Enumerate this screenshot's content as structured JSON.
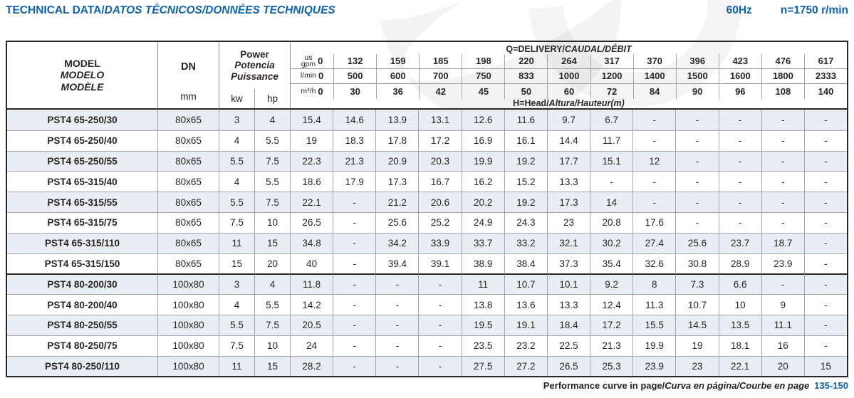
{
  "header": {
    "title": "TECHNICAL DATA/",
    "title_intl": "DATOS TÉCNICOS/DONNÉES TECHNIQUES",
    "frequency": "60Hz",
    "speed": "n=1750 r/min"
  },
  "colors": {
    "accent_blue": "#1063ae",
    "row_shade": "#e9edf4"
  },
  "table": {
    "model_header": [
      "MODEL",
      "MODELO",
      "MODÈLE"
    ],
    "dn_label": "DN",
    "dn_unit": "mm",
    "power_header": [
      "Power",
      "Potencia",
      "Puissance"
    ],
    "power_units": [
      "kw",
      "hp"
    ],
    "delivery_label": "Q=DELIVERY/",
    "delivery_label_intl": "CAUDAL/DÉBIT",
    "head_label": "H=Head/",
    "head_label_intl": "Altura/Hauteur",
    "head_label_unit": "(m)",
    "flow_units": [
      {
        "name": "us-gpm",
        "label_lines": [
          "us",
          "gpm"
        ],
        "values": [
          "0",
          "132",
          "159",
          "185",
          "198",
          "220",
          "264",
          "317",
          "370",
          "396",
          "423",
          "476",
          "617"
        ]
      },
      {
        "name": "l-min",
        "label_lines": [
          "l/min"
        ],
        "values": [
          "0",
          "500",
          "600",
          "700",
          "750",
          "833",
          "1000",
          "1200",
          "1400",
          "1500",
          "1600",
          "1800",
          "2333"
        ]
      },
      {
        "name": "m3-h",
        "label_lines": [
          "m³/h"
        ],
        "values": [
          "0",
          "30",
          "36",
          "42",
          "45",
          "50",
          "60",
          "72",
          "84",
          "90",
          "96",
          "108",
          "140"
        ]
      }
    ],
    "group_break_index": 8,
    "rows": [
      {
        "model": "PST4 65-250/30",
        "dn": "80x65",
        "kw": "3",
        "hp": "4",
        "head": [
          "15.4",
          "14.6",
          "13.9",
          "13.1",
          "12.6",
          "11.6",
          "9.7",
          "6.7",
          "-",
          "-",
          "-",
          "-",
          "-"
        ]
      },
      {
        "model": "PST4 65-250/40",
        "dn": "80x65",
        "kw": "4",
        "hp": "5.5",
        "head": [
          "19",
          "18.3",
          "17.8",
          "17.2",
          "16.9",
          "16.1",
          "14.4",
          "11.7",
          "-",
          "-",
          "-",
          "-",
          "-"
        ]
      },
      {
        "model": "PST4 65-250/55",
        "dn": "80x65",
        "kw": "5.5",
        "hp": "7.5",
        "head": [
          "22.3",
          "21.3",
          "20.9",
          "20.3",
          "19.9",
          "19.2",
          "17.7",
          "15.1",
          "12",
          "-",
          "-",
          "-",
          "-"
        ]
      },
      {
        "model": "PST4 65-315/40",
        "dn": "80x65",
        "kw": "4",
        "hp": "5.5",
        "head": [
          "18.6",
          "17.9",
          "17.3",
          "16.7",
          "16.2",
          "15.2",
          "13.3",
          "-",
          "-",
          "-",
          "-",
          "-",
          "-"
        ]
      },
      {
        "model": "PST4 65-315/55",
        "dn": "80x65",
        "kw": "5.5",
        "hp": "7.5",
        "head": [
          "22.1",
          "-",
          "21.2",
          "20.6",
          "20.2",
          "19.2",
          "17.3",
          "14",
          "-",
          "-",
          "-",
          "-",
          "-"
        ]
      },
      {
        "model": "PST4 65-315/75",
        "dn": "80x65",
        "kw": "7.5",
        "hp": "10",
        "head": [
          "26.5",
          "-",
          "25.6",
          "25.2",
          "24.9",
          "24.3",
          "23",
          "20.8",
          "17.6",
          "-",
          "-",
          "-",
          "-"
        ]
      },
      {
        "model": "PST4 65-315/110",
        "dn": "80x65",
        "kw": "11",
        "hp": "15",
        "head": [
          "34.8",
          "-",
          "34.2",
          "33.9",
          "33.7",
          "33.2",
          "32.1",
          "30.2",
          "27.4",
          "25.6",
          "23.7",
          "18.7",
          "-"
        ]
      },
      {
        "model": "PST4 65-315/150",
        "dn": "80x65",
        "kw": "15",
        "hp": "20",
        "head": [
          "40",
          "-",
          "39.4",
          "39.1",
          "38.9",
          "38.4",
          "37.3",
          "35.4",
          "32.6",
          "30.8",
          "28.9",
          "23.9",
          "-"
        ]
      },
      {
        "model": "PST4 80-200/30",
        "dn": "100x80",
        "kw": "3",
        "hp": "4",
        "head": [
          "11.8",
          "-",
          "-",
          "-",
          "11",
          "10.7",
          "10.1",
          "9.2",
          "8",
          "7.3",
          "6.6",
          "-",
          "-"
        ]
      },
      {
        "model": "PST4 80-200/40",
        "dn": "100x80",
        "kw": "4",
        "hp": "5.5",
        "head": [
          "14.2",
          "-",
          "-",
          "-",
          "13.8",
          "13.6",
          "13.3",
          "12.4",
          "11.3",
          "10.7",
          "10",
          "9",
          "-"
        ]
      },
      {
        "model": "PST4 80-250/55",
        "dn": "100x80",
        "kw": "5.5",
        "hp": "7.5",
        "head": [
          "20.5",
          "-",
          "-",
          "-",
          "19.5",
          "19.1",
          "18.4",
          "17.2",
          "15.5",
          "14.5",
          "13.5",
          "11.1",
          "-"
        ]
      },
      {
        "model": "PST4 80-250/75",
        "dn": "100x80",
        "kw": "7.5",
        "hp": "10",
        "head": [
          "24",
          "-",
          "-",
          "-",
          "23.5",
          "23.2",
          "22.5",
          "21.3",
          "19.9",
          "19",
          "18.1",
          "16",
          "-"
        ]
      },
      {
        "model": "PST4 80-250/110",
        "dn": "100x80",
        "kw": "11",
        "hp": "15",
        "head": [
          "28.2",
          "-",
          "-",
          "-",
          "27.5",
          "27.2",
          "26.5",
          "25.3",
          "23.9",
          "23",
          "22.1",
          "20",
          "15"
        ]
      }
    ]
  },
  "footer": {
    "text": "Performance curve in page/",
    "text_intl": "Curva en página/Courbe en page",
    "pages": "135-150"
  }
}
